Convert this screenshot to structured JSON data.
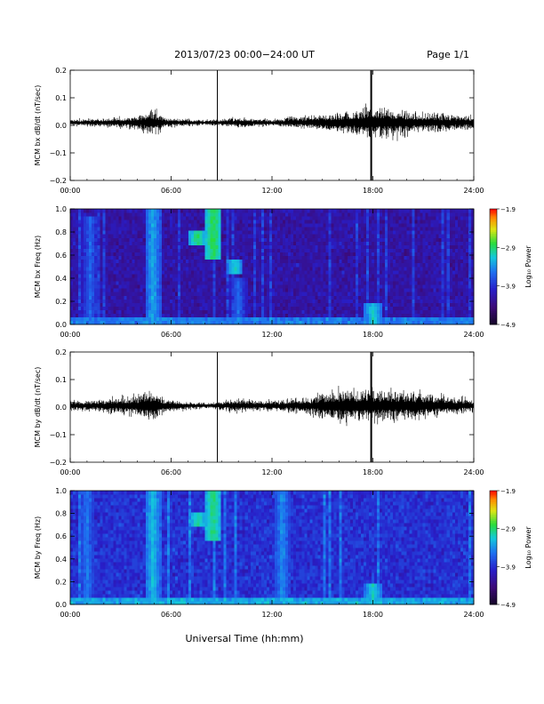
{
  "header": {
    "title": "2013/07/23  00:00−24:00 UT",
    "page": "Page 1/1"
  },
  "footer": {
    "xlabel": "Universal Time (hh:mm)"
  },
  "colors": {
    "trace": "#000000",
    "spectrogram_low": "#1a0a3a",
    "spectrogram_high": "#ff0000"
  },
  "chart_data": [
    {
      "type": "line",
      "ylabel": "MCM bx dB/dt (nT/sec)",
      "xlim": [
        0,
        24
      ],
      "ylim": [
        -0.2,
        0.2
      ],
      "x_ticks": [
        "00:00",
        "06:00",
        "12:00",
        "18:00",
        "24:00"
      ],
      "y_ticks": [
        "0.2",
        "0.1",
        "0.0",
        "−0.1",
        "−0.2"
      ],
      "y_tick_values": [
        0.2,
        0.1,
        0.0,
        -0.1,
        -0.2
      ],
      "baseline": 0.01,
      "activity_hours": [
        [
          0,
          0.01
        ],
        [
          2,
          0.012
        ],
        [
          4,
          0.02
        ],
        [
          5,
          0.04
        ],
        [
          5.6,
          0.015
        ],
        [
          8,
          0.008
        ],
        [
          10,
          0.015
        ],
        [
          12,
          0.01
        ],
        [
          14,
          0.02
        ],
        [
          16,
          0.03
        ],
        [
          18,
          0.05
        ],
        [
          21,
          0.03
        ],
        [
          24,
          0.02
        ]
      ],
      "spikes": [
        {
          "hour": 8.75,
          "min": -0.2,
          "max": 0.2
        },
        {
          "hour": 17.9,
          "min": -0.2,
          "max": 0.2
        }
      ]
    },
    {
      "type": "heatmap",
      "ylabel": "MCM bx Freq (Hz)",
      "xlim": [
        0,
        24
      ],
      "ylim": [
        0,
        1.0
      ],
      "x_ticks": [
        "00:00",
        "06:00",
        "12:00",
        "18:00",
        "24:00"
      ],
      "y_ticks": [
        "1.0",
        "0.8",
        "0.6",
        "0.4",
        "0.2",
        "0.0"
      ],
      "y_tick_values": [
        1.0,
        0.8,
        0.6,
        0.4,
        0.2,
        0.0
      ],
      "colorbar_label": "Log₁₀ Power",
      "colorbar_ticks": [
        "−1.9",
        "−2.9",
        "−3.9",
        "−4.9"
      ],
      "colorbar_tick_values": [
        -1.9,
        -2.9,
        -3.9,
        -4.9
      ],
      "vmin": -4.9,
      "vmax": -1.9,
      "background_level": -4.2,
      "features": [
        {
          "hour": 1.2,
          "fmin": 0.05,
          "fmax": 0.95,
          "level": -3.6
        },
        {
          "hour": 4.9,
          "fmin": 0.0,
          "fmax": 1.0,
          "level": -3.3
        },
        {
          "hour": 7.6,
          "fmin": 0.7,
          "fmax": 0.8,
          "level": -2.9
        },
        {
          "hour": 8.5,
          "fmin": 0.55,
          "fmax": 1.0,
          "level": -2.8
        },
        {
          "hour": 9.8,
          "fmin": 0.45,
          "fmax": 0.55,
          "level": -3.1
        },
        {
          "hour": 10.0,
          "fmin": 0.0,
          "fmax": 0.4,
          "level": -3.6
        },
        {
          "hour": 18.0,
          "fmin": 0.0,
          "fmax": 0.2,
          "level": -3.1
        }
      ],
      "low_freq_band": {
        "fmax": 0.06,
        "level": -3.5
      }
    },
    {
      "type": "line",
      "ylabel": "MCM by dB/dt (nT/sec)",
      "xlim": [
        0,
        24
      ],
      "ylim": [
        -0.2,
        0.2
      ],
      "x_ticks": [
        "00:00",
        "06:00",
        "12:00",
        "18:00",
        "24:00"
      ],
      "y_ticks": [
        "0.2",
        "0.1",
        "0.0",
        "−0.1",
        "−0.2"
      ],
      "y_tick_values": [
        0.2,
        0.1,
        0.0,
        -0.1,
        -0.2
      ],
      "baseline": 0.005,
      "activity_hours": [
        [
          0,
          0.015
        ],
        [
          2,
          0.02
        ],
        [
          4,
          0.03
        ],
        [
          5,
          0.05
        ],
        [
          5.6,
          0.02
        ],
        [
          8,
          0.008
        ],
        [
          10,
          0.02
        ],
        [
          12,
          0.015
        ],
        [
          14,
          0.025
        ],
        [
          16,
          0.05
        ],
        [
          18,
          0.05
        ],
        [
          21,
          0.04
        ],
        [
          24,
          0.02
        ]
      ],
      "spikes": [
        {
          "hour": 8.75,
          "min": -0.2,
          "max": 0.2
        },
        {
          "hour": 17.9,
          "min": -0.2,
          "max": 0.2
        }
      ]
    },
    {
      "type": "heatmap",
      "ylabel": "MCM by Freq (Hz)",
      "xlim": [
        0,
        24
      ],
      "ylim": [
        0,
        1.0
      ],
      "x_ticks": [
        "00:00",
        "06:00",
        "12:00",
        "18:00",
        "24:00"
      ],
      "y_ticks": [
        "1.0",
        "0.8",
        "0.6",
        "0.4",
        "0.2",
        "0.0"
      ],
      "y_tick_values": [
        1.0,
        0.8,
        0.6,
        0.4,
        0.2,
        0.0
      ],
      "colorbar_label": "Log₁₀ Power",
      "colorbar_ticks": [
        "−1.9",
        "−2.9",
        "−3.9",
        "−4.9"
      ],
      "colorbar_tick_values": [
        -1.9,
        -2.9,
        -3.9,
        -4.9
      ],
      "vmin": -4.9,
      "vmax": -1.9,
      "background_level": -3.9,
      "features": [
        {
          "hour": 1.0,
          "fmin": 0.0,
          "fmax": 1.0,
          "level": -3.5
        },
        {
          "hour": 4.9,
          "fmin": 0.0,
          "fmax": 1.0,
          "level": -3.2
        },
        {
          "hour": 7.6,
          "fmin": 0.7,
          "fmax": 0.8,
          "level": -3.0
        },
        {
          "hour": 8.5,
          "fmin": 0.55,
          "fmax": 1.0,
          "level": -2.9
        },
        {
          "hour": 12.6,
          "fmin": 0.0,
          "fmax": 1.0,
          "level": -3.4
        },
        {
          "hour": 18.0,
          "fmin": 0.0,
          "fmax": 0.2,
          "level": -3.1
        }
      ],
      "low_freq_band": {
        "fmax": 0.06,
        "level": -3.3
      }
    }
  ]
}
